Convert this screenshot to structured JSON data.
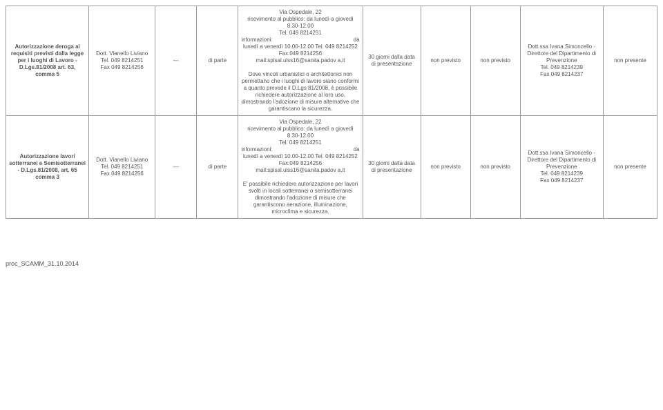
{
  "rows": [
    {
      "title": "Autorizzazione deroga ai requisiti previsti dalla legge per i luoghi di Lavoro - D.Lgs.81/2008 art. 63, comma 5",
      "resp_name": "Dott. Vianello Liviano",
      "resp_tel": "Tel. 049 8214251",
      "resp_fax": "Fax 049 8214256",
      "col3": "---",
      "col4": "di parte",
      "addr_l1": "Via Ospedale, 22",
      "addr_l2": "ricevimento al pubblico: da lunedì a giovedì 8.30-12.00",
      "addr_l3": "Tel. 049 8214251",
      "addr_info_label": "informazioni:",
      "addr_info_da": "da",
      "addr_l5": "lunedì a venerdì 10.00-12.00 Tel. 049 8214252",
      "addr_l6": "Fax:049 8214256",
      "addr_l7": "mail:spisal.ulss16@sanita.padov a.it",
      "desc": "Dove vincoli urbanistici o architettonici non permettano che i luoghi di lavoro siano conformi a quanto prevede il D.Lgs 81/2008, è possibile richiedere autorizzazione al loro uso, dimostrando l'adozione di misure alternative che garantiscano la sicurezza.",
      "col6": "30 giorni dalla data di presentazione",
      "col7": "non previsto",
      "col8": "non previsto",
      "dir_l1": "Dott.ssa Ivana Simoncello - Direttore del Dipartimento di Prevenzione",
      "dir_l2": "Tel. 049 8214239",
      "dir_l3": "Fax 049 8214237",
      "col10": "non presente"
    },
    {
      "title": "Autorizzazione lavori sotterranei e Semisotterranei - D.Lgs.81/2008, art. 65 comma 3",
      "resp_name": "Dott. Vianello Liviano",
      "resp_tel": "Tel. 049 8214251",
      "resp_fax": "Fax 049 8214256",
      "col3": "---",
      "col4": "di parte",
      "addr_l1": "Via Ospedale, 22",
      "addr_l2": "ricevimento al pubblico: da lunedì a giovedì 8.30-12.00",
      "addr_l3": "Tel. 049 8214251",
      "addr_info_label": "informazioni:",
      "addr_info_da": "da",
      "addr_l5": "lunedì a venerdì 10.00-12.00 Tel. 049 8214252",
      "addr_l6": "Fax:049 8214256",
      "addr_l7": "mail:spisal.ulss16@sanita.padov a.it",
      "desc": "E' possibile richiedere autorizzazione per lavori svolti in locali sotterranei o semisotterranei dimostrando l'adozione di misure che garantiscono aerazione, illuminazione, microclima e sicurezza.",
      "col6": "30 giorni dalla data di presentazione",
      "col7": "non previsto",
      "col8": "non previsto",
      "dir_l1": "Dott.ssa Ivana Simoncello - Direttore del Dipartimento di Prevenzione",
      "dir_l2": "Tel. 049 8214239",
      "dir_l3": "Fax 049 8214237",
      "col10": "non presente"
    }
  ],
  "footer": "proc_SCAMM_31.10.2014"
}
